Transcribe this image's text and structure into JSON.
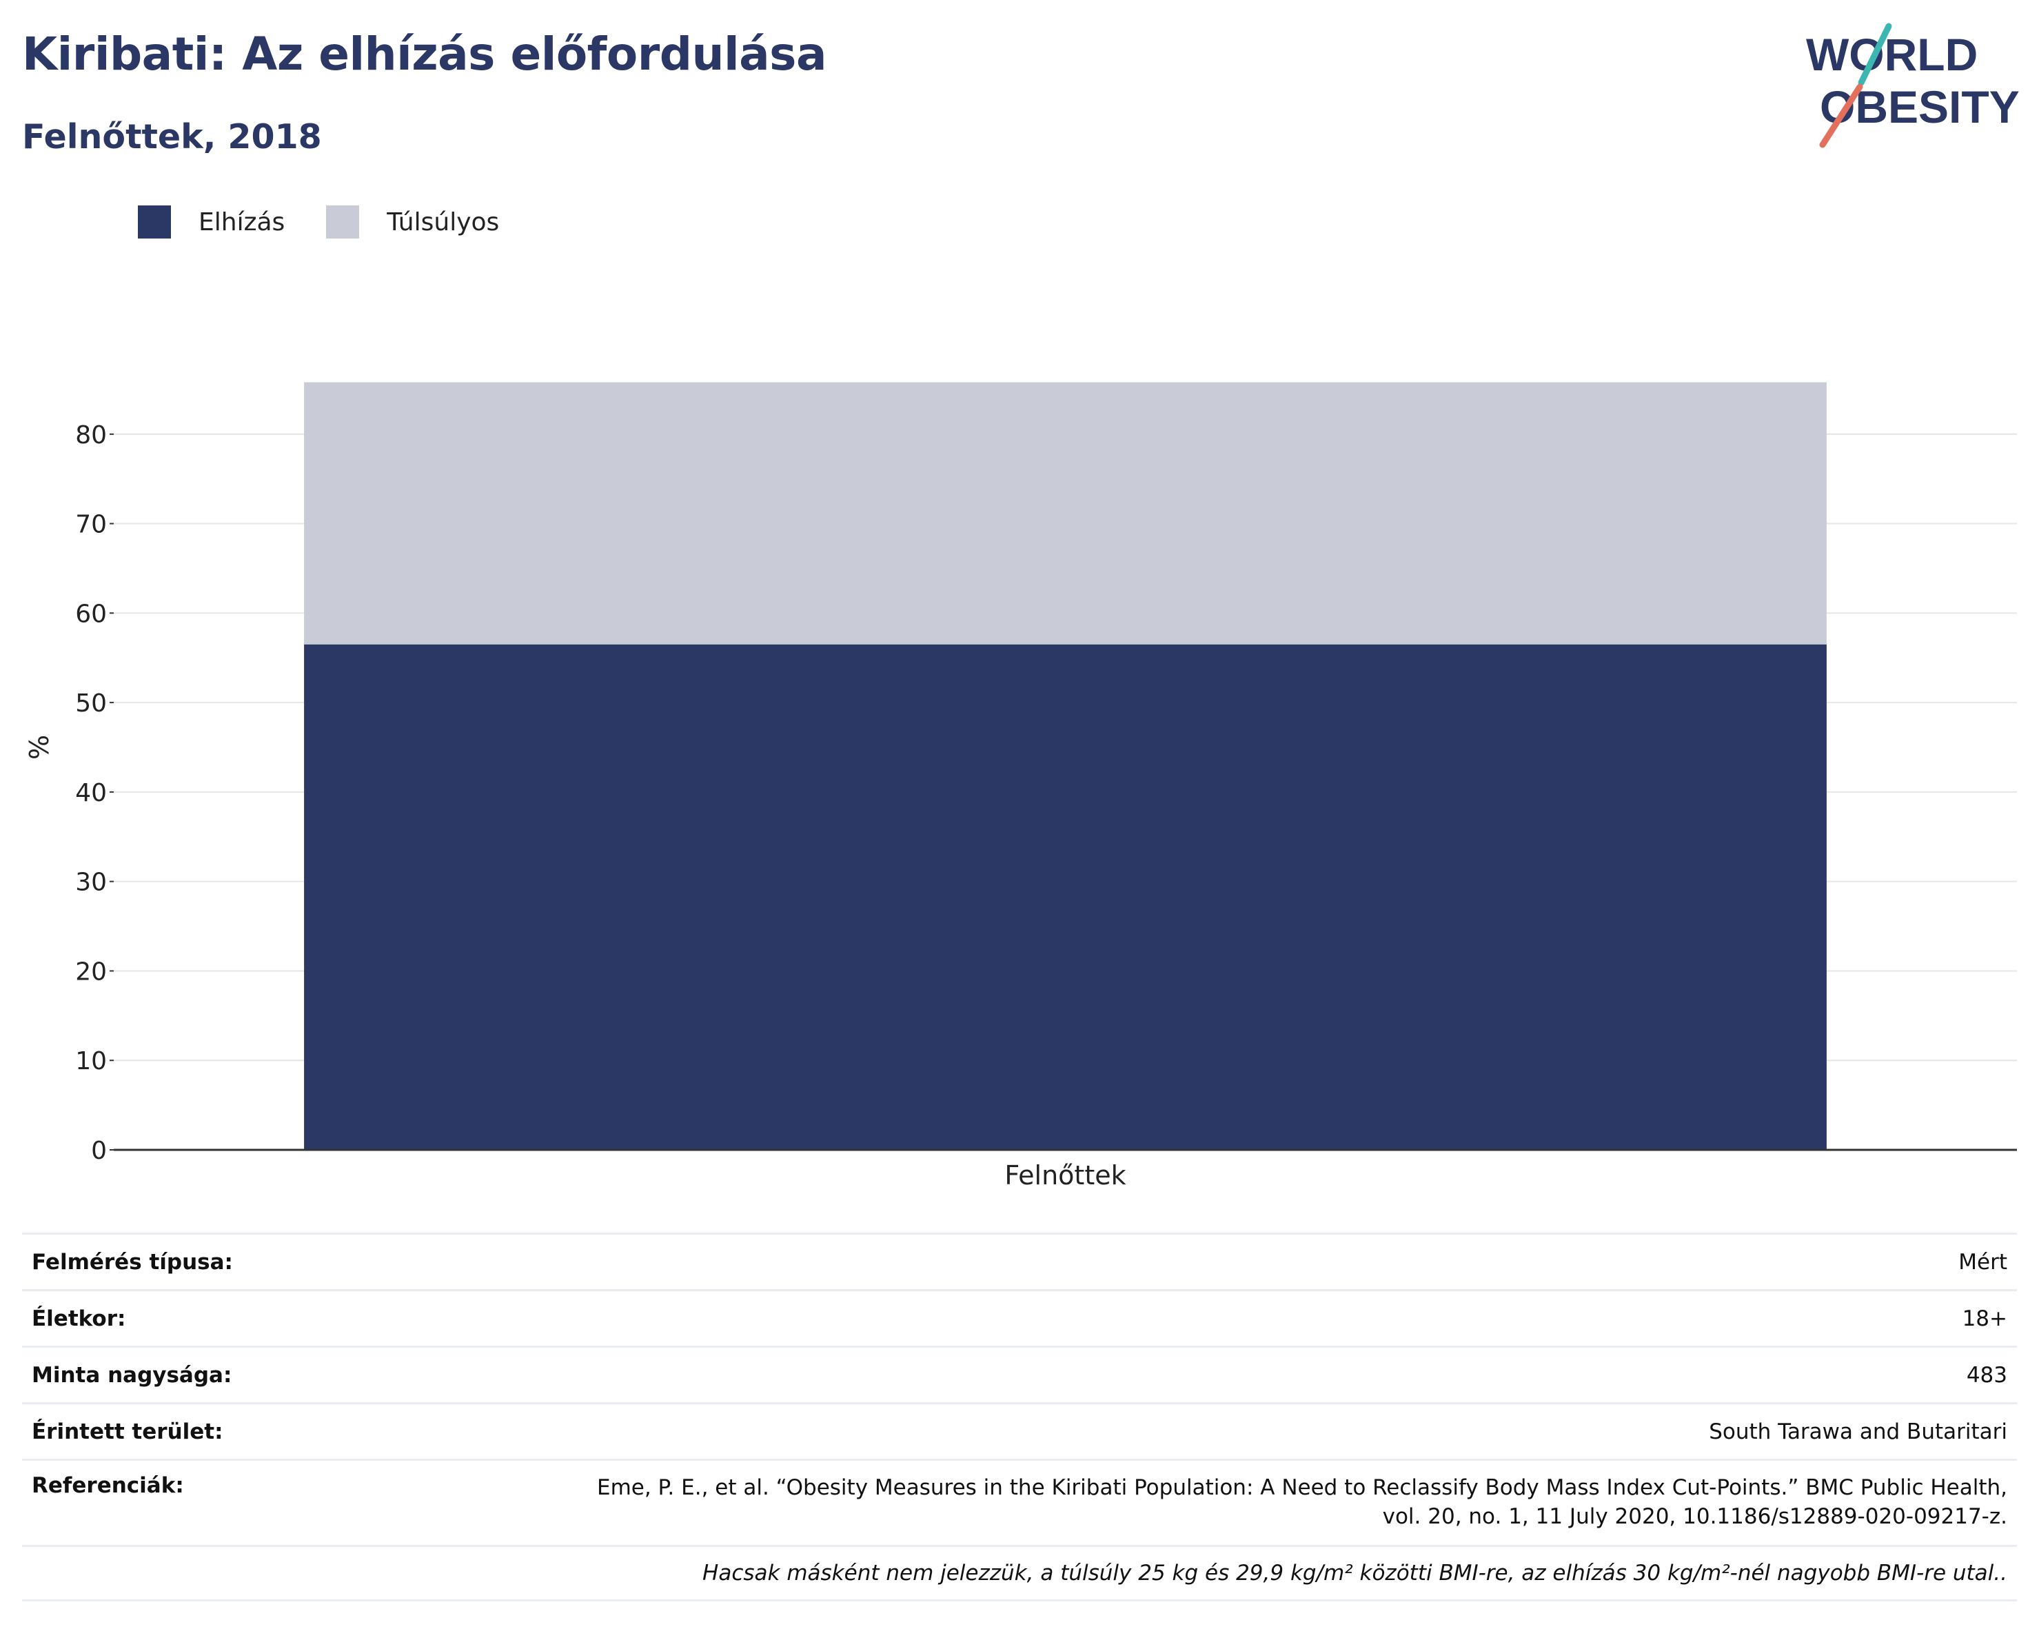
{
  "header": {
    "title": "Kiribati: Az elhízás előfordulása",
    "subtitle": "Felnőttek, 2018"
  },
  "logo": {
    "line1": "WORLD",
    "line2": "OBESITY",
    "colors": {
      "text": "#2b3764",
      "stroke_top": "#3bb6b0",
      "stroke_bottom": "#e2705c"
    }
  },
  "colors": {
    "obesity": "#2b3764",
    "overweight": "#c9ccd7",
    "grid": "#e6e6e6",
    "axis": "#333333"
  },
  "legend": [
    {
      "label": "Elhízás",
      "color": "#2b3764"
    },
    {
      "label": "Túlsúlyos",
      "color": "#c9ccd7"
    }
  ],
  "chart_data": {
    "type": "bar",
    "stacked": true,
    "categories": [
      "Felnőttek"
    ],
    "series": [
      {
        "name": "Elhízás",
        "values": [
          56.5
        ]
      },
      {
        "name": "Túlsúlyos",
        "values": [
          29.3
        ]
      }
    ],
    "ylabel": "%",
    "xlabel": "",
    "ylim": [
      0,
      90
    ],
    "yticks": [
      0,
      10,
      20,
      30,
      40,
      50,
      60,
      70,
      80
    ],
    "grid": true,
    "legend_position": "top-left"
  },
  "info": {
    "survey_type": {
      "label": "Felmérés típusa:",
      "value": "Mért"
    },
    "age": {
      "label": "Életkor:",
      "value": "18+"
    },
    "sample_size": {
      "label": "Minta nagysága:",
      "value": "483"
    },
    "area": {
      "label": "Érintett terület:",
      "value": "South Tarawa and Butaritari"
    },
    "references": {
      "label": "Referenciák:",
      "line1": "Eme, P. E., et al. “Obesity Measures in the Kiribati Population: A Need to Reclassify Body Mass Index Cut-Points.” BMC Public Health,",
      "line2": "vol. 20, no. 1, 11 July 2020, 10.1186/s12889-020-09217-z."
    },
    "note": "Hacsak másként nem jelezzük, a túlsúly 25 kg és 29,9 kg/m² közötti BMI-re, az elhízás 30 kg/m²-nél nagyobb BMI-re utal.."
  }
}
